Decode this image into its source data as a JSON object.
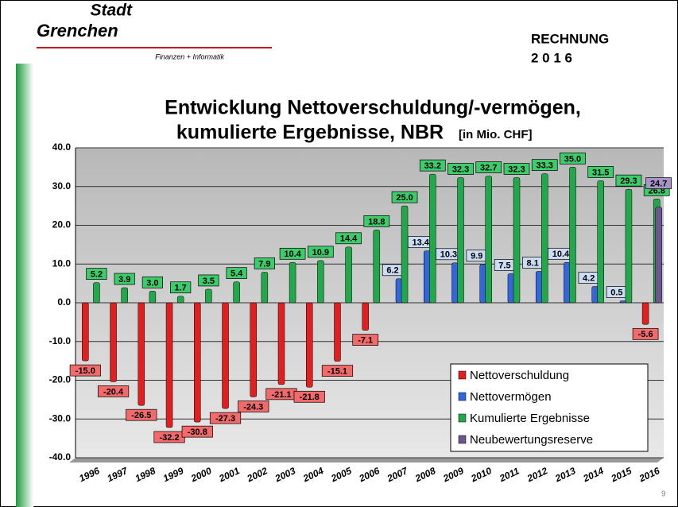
{
  "header": {
    "logo_line1": "Stadt",
    "logo_line2": "Grenchen",
    "logo_sub": "Finanzen + Informatik",
    "report": "RECHNUNG",
    "year": "2 0 1 6",
    "page": "9"
  },
  "chart_data": {
    "type": "bar",
    "title_lines": [
      "Entwicklung  Nettoverschuldung/-vermögen,",
      "kumulierte Ergebnisse, NBR"
    ],
    "unit": "[in Mio. CHF]",
    "categories": [
      "1996",
      "1997",
      "1998",
      "1999",
      "2000",
      "2001",
      "2002",
      "2003",
      "2004",
      "2005",
      "2006",
      "2007",
      "2008",
      "2009",
      "2010",
      "2011",
      "2012",
      "2013",
      "2014",
      "2015",
      "2016"
    ],
    "series": [
      {
        "name": "Nettoverschuldung",
        "color": "#e02020",
        "label_color": "#f26a6a",
        "values": [
          -15.0,
          -20.4,
          -26.5,
          -32.2,
          -30.8,
          -27.3,
          -24.3,
          -21.1,
          -21.8,
          -15.1,
          -7.1,
          null,
          null,
          null,
          null,
          null,
          null,
          null,
          null,
          null,
          -5.6
        ],
        "value_labels": [
          "-15.0",
          "-20.4",
          "-26.5",
          "-32.2",
          "-30.8",
          "-27.3",
          "-24.3",
          "-21.1",
          "-21.8",
          "-15.1",
          "-7.1",
          null,
          null,
          null,
          null,
          null,
          null,
          null,
          null,
          null,
          "-5.6"
        ]
      },
      {
        "name": "Nettovermögen",
        "color": "#3366dd",
        "label_color": "#ccdcf4",
        "values": [
          null,
          null,
          null,
          null,
          null,
          null,
          null,
          null,
          null,
          null,
          null,
          6.2,
          13.4,
          10.3,
          9.9,
          7.5,
          8.1,
          10.4,
          4.2,
          0.5,
          null
        ],
        "value_labels": [
          null,
          null,
          null,
          null,
          null,
          null,
          null,
          null,
          null,
          null,
          null,
          "6.2",
          "13.4",
          "10.3",
          "9.9",
          "7.5",
          "8.1",
          "10.4",
          "4.2",
          "0.5",
          null
        ]
      },
      {
        "name": "Kumulierte Ergebnisse",
        "color": "#22a84a",
        "label_color": "#3ccc6a",
        "values": [
          5.2,
          3.9,
          3.0,
          1.7,
          3.5,
          5.4,
          7.9,
          10.4,
          10.9,
          14.4,
          18.8,
          25.0,
          33.2,
          32.3,
          32.7,
          32.3,
          33.3,
          35.0,
          31.5,
          29.3,
          26.8
        ],
        "value_labels": [
          "5.2",
          "3.9",
          "3.0",
          "1.7",
          "3.5",
          "5.4",
          "7.9",
          "10.4",
          "10.9",
          "14.4",
          "18.8",
          "25.0",
          "33.2",
          "32.3",
          "32.7",
          "32.3",
          "33.3",
          "35.0",
          "31.5",
          "29.3",
          "26.8"
        ]
      },
      {
        "name": "Neubewertungsreserve",
        "color": "#6e5590",
        "label_color": "#a894c8",
        "values": [
          null,
          null,
          null,
          null,
          null,
          null,
          null,
          null,
          null,
          null,
          null,
          null,
          null,
          null,
          null,
          null,
          null,
          null,
          null,
          null,
          24.7
        ],
        "value_labels": [
          null,
          null,
          null,
          null,
          null,
          null,
          null,
          null,
          null,
          null,
          null,
          null,
          null,
          null,
          null,
          null,
          null,
          null,
          null,
          null,
          "24.7"
        ]
      }
    ],
    "ylim": [
      -40,
      40
    ],
    "yticks": [
      {
        "value": -40,
        "label": "-40.0"
      },
      {
        "value": -30,
        "label": "-30.0"
      },
      {
        "value": -20,
        "label": "-20.0"
      },
      {
        "value": -10,
        "label": "-10.0"
      },
      {
        "value": 0,
        "label": "0.0"
      },
      {
        "value": 10,
        "label": "10.0"
      },
      {
        "value": 20,
        "label": "20.0"
      },
      {
        "value": 30,
        "label": "30.0"
      },
      {
        "value": 40,
        "label": "40.0"
      }
    ],
    "grid": true
  }
}
